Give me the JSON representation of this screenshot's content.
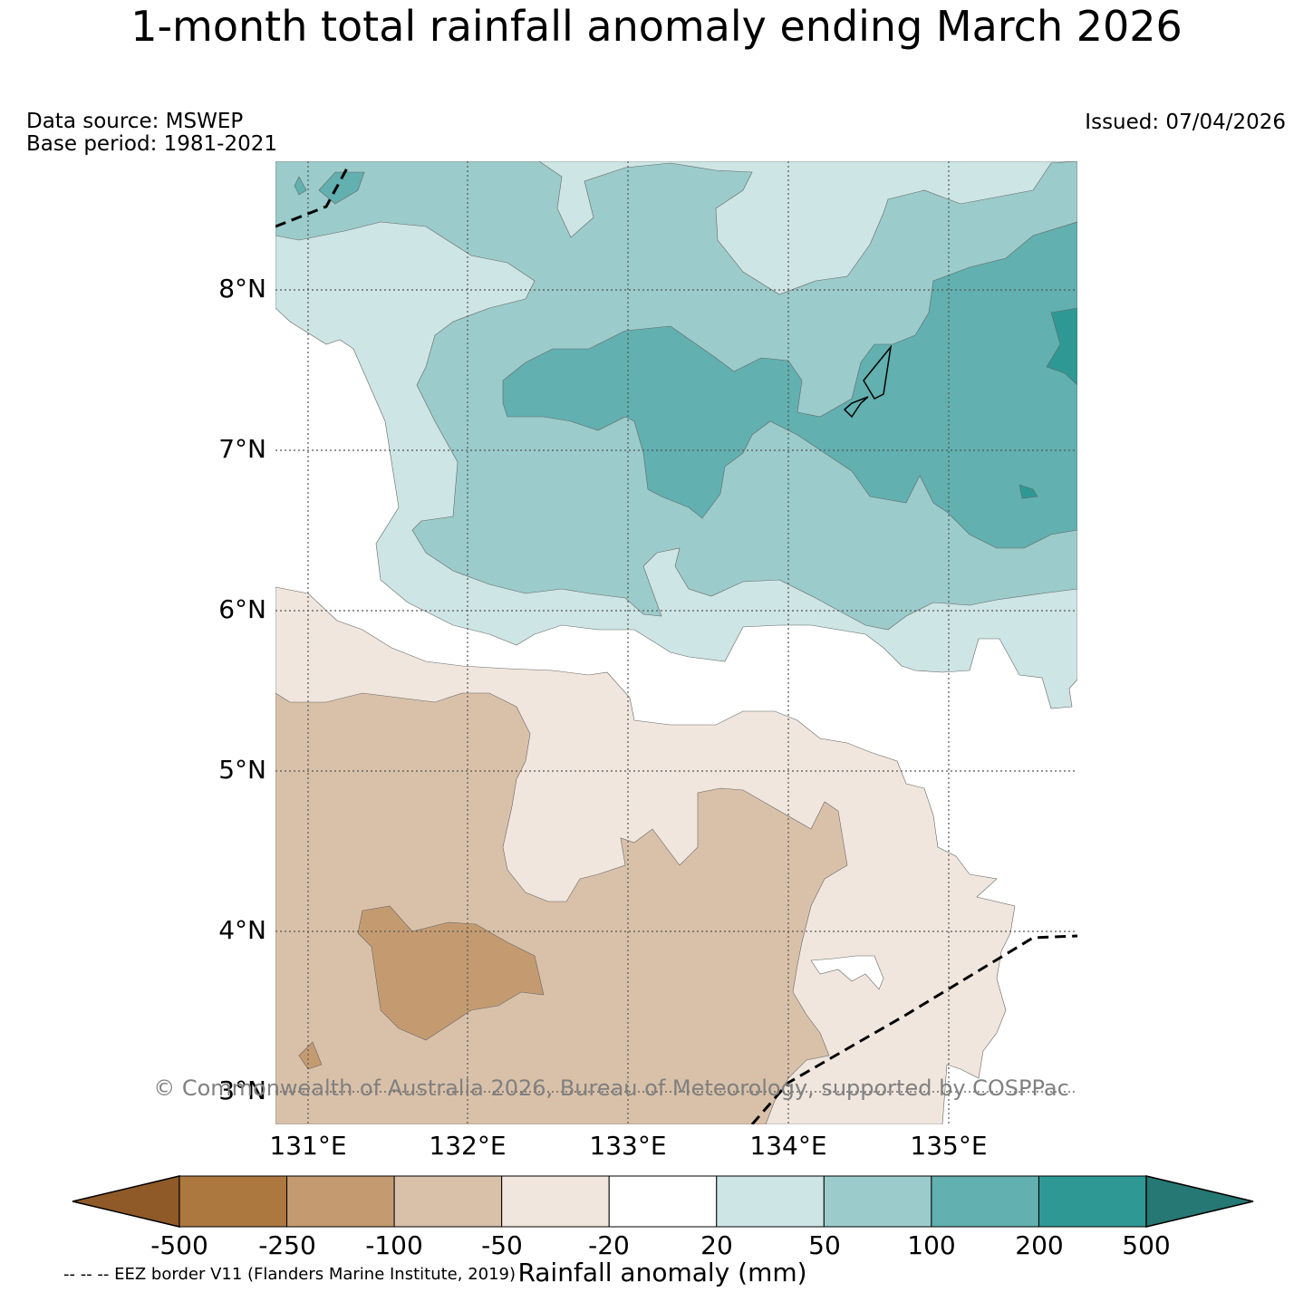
{
  "header": {
    "title": "1-month total rainfall anomaly ending March 2026",
    "data_source": "Data source: MSWEP",
    "base_period": "Base period: 1981-2021",
    "issued": "Issued: 07/04/2026"
  },
  "map": {
    "latitude_labels": [
      "8°N",
      "7°N",
      "6°N",
      "5°N",
      "4°N",
      "3°N"
    ],
    "longitude_labels": [
      "131°E",
      "132°E",
      "133°E",
      "134°E",
      "135°E"
    ],
    "copyright": "© Commonwealth of Australia 2026, Bureau of Meteorology, supported by COSPPac",
    "eez_note": "-- -- -- EEZ border V11 (Flanders Marine Institute, 2019)"
  },
  "colorbar": {
    "label": "Rainfall anomaly (mm)",
    "ticks": [
      "-500",
      "-250",
      "-100",
      "-50",
      "-20",
      "20",
      "50",
      "100",
      "200",
      "500"
    ],
    "colors": [
      "#8f5a27",
      "#ad7740",
      "#c49b71",
      "#d9c1a9",
      "#f0e6dd",
      "#ffffff",
      "#cde5e4",
      "#9bcbcb",
      "#62b0b0",
      "#2e9895",
      "#267874"
    ]
  }
}
